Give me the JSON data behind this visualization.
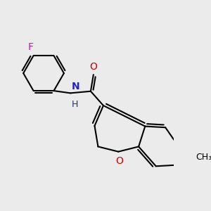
{
  "background_color": "#ebebeb",
  "bond_color": "#000000",
  "bond_width": 1.5,
  "figsize": [
    3.0,
    3.0
  ],
  "dpi": 100,
  "xlim": [
    0,
    7.5
  ],
  "ylim": [
    0,
    7.5
  ],
  "atoms": {
    "F": {
      "color": "#dd00dd"
    },
    "O_carbonyl": {
      "color": "#cc0000"
    },
    "N": {
      "color": "#2222cc"
    },
    "H": {
      "color": "#2222cc"
    },
    "O_ring": {
      "color": "#cc0000"
    },
    "methyl": {
      "color": "#000000"
    }
  }
}
